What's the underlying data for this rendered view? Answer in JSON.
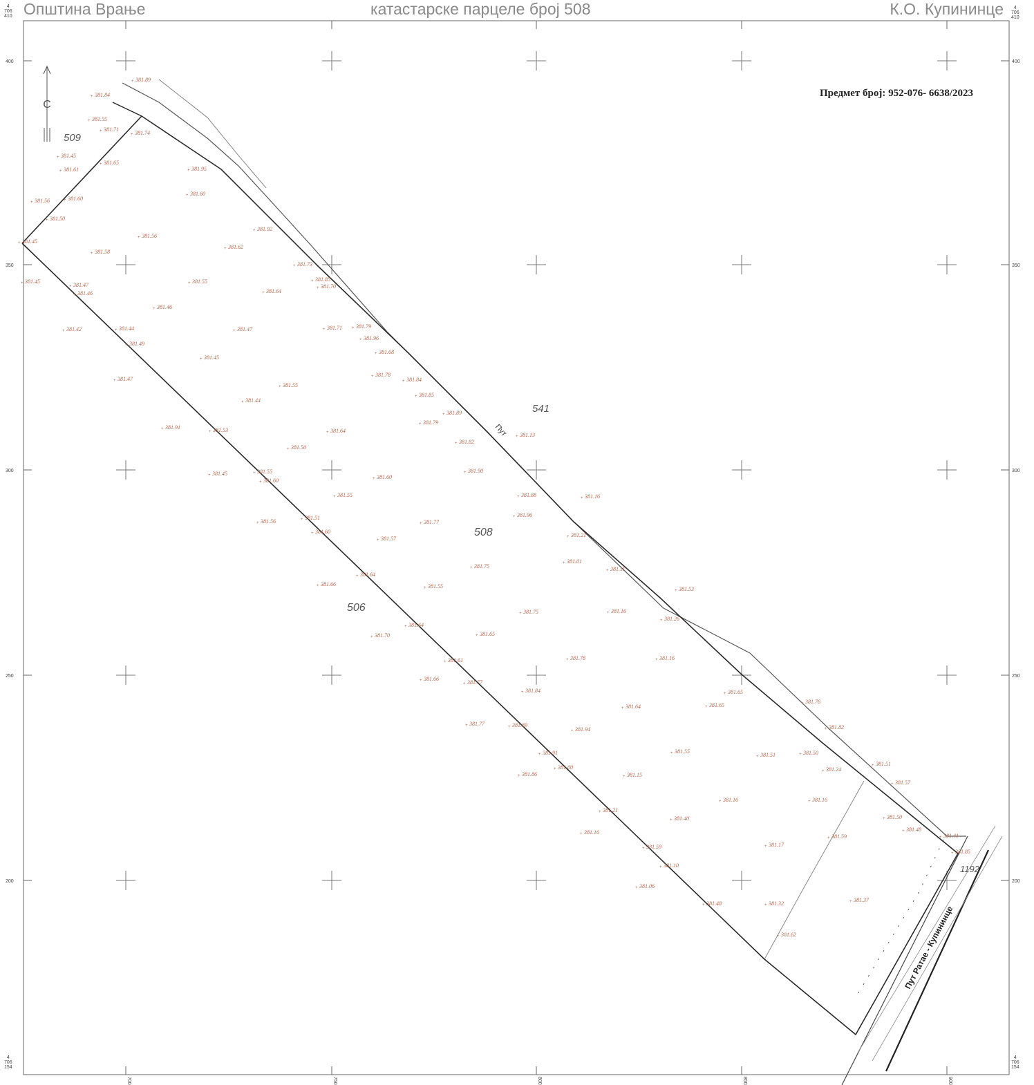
{
  "header": {
    "municipality": "Општина Врање",
    "title": "катастарске парцеле број 508",
    "cadastral_municipality": "К.О. Купининце"
  },
  "corners": {
    "top_left": [
      "4",
      "706",
      "410"
    ],
    "top_right": [
      "4",
      "706",
      "410"
    ],
    "bottom_left": [
      "4",
      "706",
      "154"
    ],
    "bottom_right": [
      "4",
      "706",
      "154"
    ]
  },
  "subject_label": "Предмет број: 952-076- 6638/2023",
  "north_arrow": {
    "letter": "С"
  },
  "grid": {
    "left_labels": [
      "400",
      "350",
      "300",
      "250",
      "200"
    ],
    "right_labels": [
      "400",
      "350",
      "300",
      "250",
      "200"
    ],
    "bottom_labels": [
      "700",
      "750",
      "800",
      "850",
      "900"
    ]
  },
  "parcels": {
    "p509": "509",
    "p508": "508",
    "p541": "541",
    "p506": "506",
    "p1192": "1192"
  },
  "road_labels": {
    "put": "Пут",
    "ratae": "Пут Ратае - Купининце"
  },
  "colors": {
    "parcel_line": "#2a2a2a",
    "road_line": "#555555",
    "elevation": "#b0664a",
    "header_text": "#8a8a8a"
  },
  "elevations": [
    "381.89",
    "381.84",
    "381.55",
    "381.71",
    "381.74",
    "381.45",
    "381.65",
    "381.61",
    "381.56",
    "381.60",
    "381.50",
    "381.45",
    "381.95",
    "381.60",
    "381.92",
    "381.56",
    "381.58",
    "381.62",
    "381.45",
    "381.55",
    "381.47",
    "381.46",
    "381.46",
    "381.64",
    "381.85",
    "381.70",
    "381.73",
    "381.42",
    "381.44",
    "381.49",
    "381.47",
    "381.71",
    "381.79",
    "381.96",
    "381.68",
    "381.45",
    "381.47",
    "381.55",
    "381.78",
    "381.84",
    "381.85",
    "381.44",
    "381.89",
    "381.53",
    "381.79",
    "381.82",
    "381.64",
    "381.13",
    "381.50",
    "381.91",
    "381.45",
    "381.55",
    "381.60",
    "381.60",
    "381.90",
    "381.55",
    "381.88",
    "381.16",
    "381.56",
    "381.51",
    "381.60",
    "381.77",
    "381.96",
    "381.57",
    "381.21",
    "381.66",
    "381.64",
    "381.75",
    "381.01",
    "381.55",
    "381.11",
    "381.53",
    "381.70",
    "381.75",
    "381.16",
    "381.26",
    "381.64",
    "381.65",
    "381.78",
    "381.16",
    "381.61",
    "381.66",
    "381.77",
    "381.84",
    "381.65",
    "381.64",
    "381.65",
    "381.76",
    "381.77",
    "381.89",
    "381.94",
    "381.82",
    "381.91",
    "381.00",
    "381.55",
    "381.51",
    "381.50",
    "381.86",
    "381.15",
    "381.24",
    "381.21",
    "381.16",
    "381.16",
    "381.16",
    "381.59",
    "381.40",
    "381.51",
    "381.57",
    "381.50",
    "381.48",
    "381.85",
    "381.41",
    "381.59",
    "381.10",
    "381.17",
    "381.06",
    "381.48",
    "381.32",
    "381.62",
    "381.37"
  ]
}
